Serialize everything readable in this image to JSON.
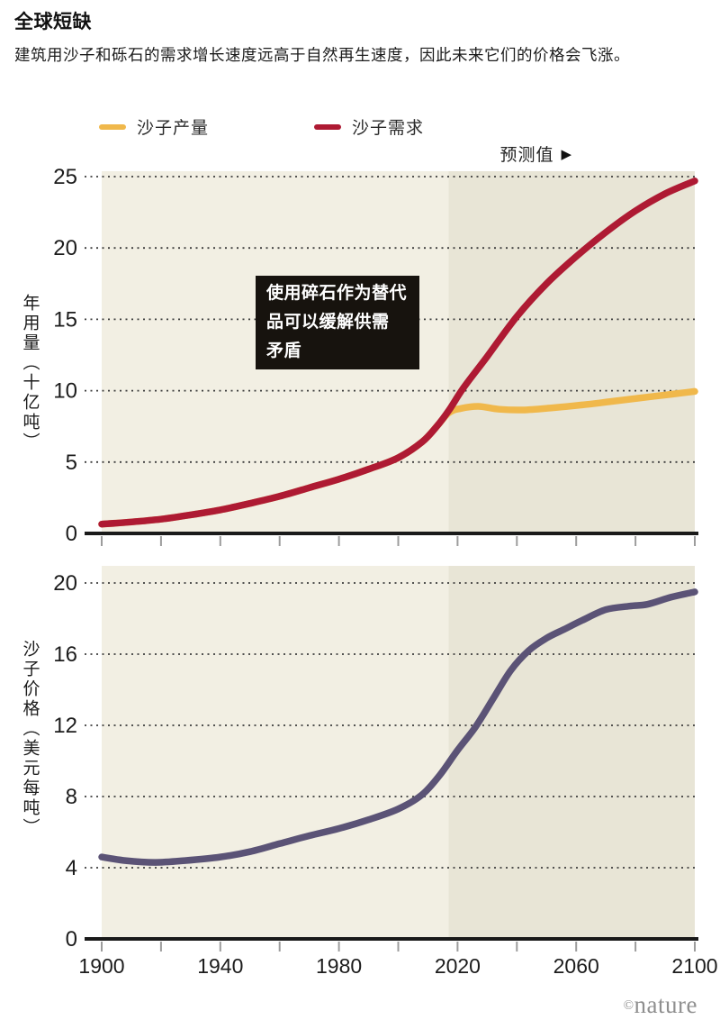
{
  "header": {
    "title": "全球短缺",
    "subtitle": "建筑用沙子和砾石的需求增长速度远高于自然再生速度，因此未来它们的价格会飞涨。"
  },
  "legend": {
    "items": [
      {
        "key": "production",
        "label": "沙子产量",
        "color": "#f0b84b"
      },
      {
        "key": "demand",
        "label": "沙子需求",
        "color": "#ae1a33"
      }
    ]
  },
  "forecast": {
    "text": "预测值",
    "arrow": "▶"
  },
  "annotation": {
    "lines": [
      "使用碎石作为替代",
      "品可以缓解供需",
      "矛盾"
    ],
    "background": "#17130e",
    "text_color": "#ffffff"
  },
  "footer": {
    "copyright": "©",
    "brand": "nature"
  },
  "colors": {
    "band_history": "#f2efe3",
    "band_forecast": "#e8e5d6",
    "gridline": "#3c3c3c",
    "axis": "#1a1a1a",
    "tick": "#9c9c9c",
    "tick_label": "#1c1c1c"
  },
  "chart_data": [
    {
      "type": "line",
      "ylabel": "年用量（十亿吨）",
      "xlim": [
        1900,
        2100
      ],
      "ylim": [
        0,
        25
      ],
      "yticks": [
        0,
        5,
        10,
        15,
        20,
        25
      ],
      "xticks": [
        1900,
        1920,
        1940,
        1960,
        1980,
        2000,
        2020,
        2040,
        2060,
        2080,
        2100
      ],
      "xtick_labels": [],
      "grid": "dotted-horizontal",
      "forecast_start": 2017,
      "series": [
        {
          "key": "production",
          "name": "沙子产量",
          "color": "#f0b84b",
          "points": [
            [
              1900,
              0.65
            ],
            [
              1910,
              0.8
            ],
            [
              1920,
              1.0
            ],
            [
              1930,
              1.3
            ],
            [
              1940,
              1.65
            ],
            [
              1950,
              2.1
            ],
            [
              1960,
              2.6
            ],
            [
              1970,
              3.2
            ],
            [
              1980,
              3.8
            ],
            [
              1990,
              4.5
            ],
            [
              2000,
              5.3
            ],
            [
              2008,
              6.4
            ],
            [
              2013,
              7.5
            ],
            [
              2017,
              8.45
            ],
            [
              2021,
              8.75
            ],
            [
              2027,
              8.9
            ],
            [
              2034,
              8.7
            ],
            [
              2042,
              8.65
            ],
            [
              2052,
              8.8
            ],
            [
              2062,
              9.0
            ],
            [
              2072,
              9.25
            ],
            [
              2082,
              9.5
            ],
            [
              2092,
              9.75
            ],
            [
              2100,
              9.95
            ]
          ]
        },
        {
          "key": "demand",
          "name": "沙子需求",
          "color": "#ae1a33",
          "points": [
            [
              1900,
              0.65
            ],
            [
              1910,
              0.8
            ],
            [
              1920,
              1.0
            ],
            [
              1930,
              1.3
            ],
            [
              1940,
              1.65
            ],
            [
              1950,
              2.1
            ],
            [
              1960,
              2.6
            ],
            [
              1970,
              3.2
            ],
            [
              1980,
              3.8
            ],
            [
              1990,
              4.5
            ],
            [
              2000,
              5.3
            ],
            [
              2008,
              6.4
            ],
            [
              2013,
              7.5
            ],
            [
              2017,
              8.6
            ],
            [
              2022,
              10.2
            ],
            [
              2030,
              12.4
            ],
            [
              2040,
              15.2
            ],
            [
              2050,
              17.5
            ],
            [
              2060,
              19.4
            ],
            [
              2070,
              21.1
            ],
            [
              2080,
              22.6
            ],
            [
              2090,
              23.8
            ],
            [
              2100,
              24.7
            ]
          ]
        }
      ]
    },
    {
      "type": "line",
      "ylabel": "沙子价格（美元每吨）",
      "xlim": [
        1900,
        2100
      ],
      "ylim": [
        0,
        20
      ],
      "yticks": [
        0,
        4,
        8,
        12,
        16,
        20
      ],
      "xticks": [
        1900,
        1920,
        1940,
        1960,
        1980,
        2000,
        2020,
        2040,
        2060,
        2080,
        2100
      ],
      "xtick_labels": [
        "1900",
        "1940",
        "1980",
        "2020",
        "2060",
        "2100"
      ],
      "grid": "dotted-horizontal",
      "forecast_start": 2017,
      "series": [
        {
          "key": "price",
          "name": "沙子价格",
          "color": "#5b5376",
          "points": [
            [
              1900,
              4.6
            ],
            [
              1908,
              4.4
            ],
            [
              1918,
              4.3
            ],
            [
              1928,
              4.4
            ],
            [
              1940,
              4.6
            ],
            [
              1950,
              4.9
            ],
            [
              1960,
              5.35
            ],
            [
              1970,
              5.8
            ],
            [
              1980,
              6.2
            ],
            [
              1990,
              6.7
            ],
            [
              2000,
              7.3
            ],
            [
              2008,
              8.1
            ],
            [
              2014,
              9.2
            ],
            [
              2020,
              10.6
            ],
            [
              2026,
              11.9
            ],
            [
              2032,
              13.5
            ],
            [
              2038,
              15.1
            ],
            [
              2044,
              16.2
            ],
            [
              2050,
              16.9
            ],
            [
              2056,
              17.4
            ],
            [
              2062,
              17.9
            ],
            [
              2070,
              18.5
            ],
            [
              2078,
              18.7
            ],
            [
              2084,
              18.8
            ],
            [
              2092,
              19.2
            ],
            [
              2100,
              19.5
            ]
          ]
        }
      ]
    }
  ]
}
